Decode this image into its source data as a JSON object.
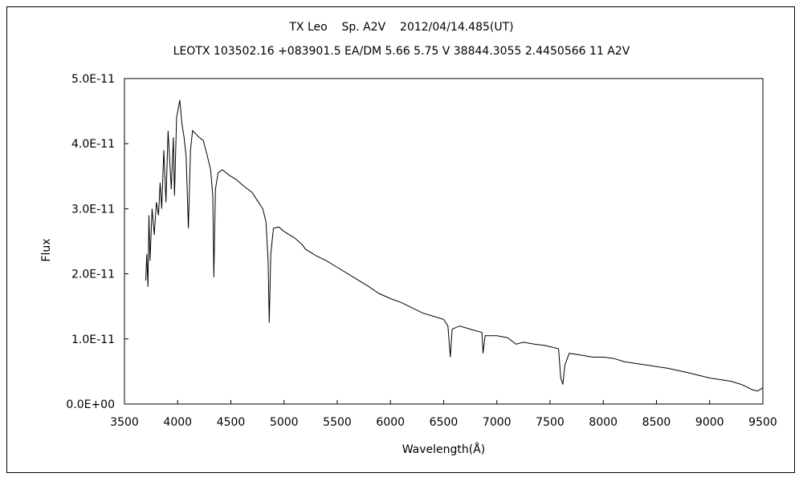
{
  "chart_data": {
    "type": "line",
    "title": "TX Leo    Sp. A2V    2012/04/14.485(UT)",
    "subtitle": "LEOTX 103502.16 +083901.5 EA/DM 5.66 5.75 V 38844.3055 2.4450566 11 A2V",
    "xlabel": "Wavelength(Å)",
    "ylabel": "Flux",
    "xlim": [
      3500,
      9500
    ],
    "ylim": [
      0,
      5e-11
    ],
    "x_ticks": [
      3500,
      4000,
      4500,
      5000,
      5500,
      6000,
      6500,
      7000,
      7500,
      8000,
      8500,
      9000,
      9500
    ],
    "x_tick_labels": [
      "3500",
      "4000",
      "4500",
      "5000",
      "5500",
      "6000",
      "6500",
      "7000",
      "7500",
      "8000",
      "8500",
      "9000",
      "9500"
    ],
    "y_ticks": [
      0,
      1e-11,
      2e-11,
      3e-11,
      4e-11,
      5e-11
    ],
    "y_tick_labels": [
      "0.0E+00",
      "1.0E-11",
      "2.0E-11",
      "3.0E-11",
      "4.0E-11",
      "5.0E-11"
    ],
    "grid": false,
    "legend": "none",
    "series": [
      {
        "color": "#000000",
        "points": [
          [
            3700,
            1.9e-11
          ],
          [
            3710,
            2.3e-11
          ],
          [
            3720,
            1.8e-11
          ],
          [
            3730,
            2.9e-11
          ],
          [
            3740,
            2.2e-11
          ],
          [
            3760,
            3e-11
          ],
          [
            3780,
            2.6e-11
          ],
          [
            3800,
            3.1e-11
          ],
          [
            3820,
            2.9e-11
          ],
          [
            3835,
            3.4e-11
          ],
          [
            3850,
            3e-11
          ],
          [
            3870,
            3.9e-11
          ],
          [
            3890,
            3.1e-11
          ],
          [
            3910,
            4.2e-11
          ],
          [
            3940,
            3.3e-11
          ],
          [
            3960,
            4.1e-11
          ],
          [
            3970,
            3.2e-11
          ],
          [
            3990,
            4.4e-11
          ],
          [
            4020,
            4.67e-11
          ],
          [
            4040,
            4.3e-11
          ],
          [
            4060,
            4.1e-11
          ],
          [
            4080,
            3.8e-11
          ],
          [
            4101,
            2.7e-11
          ],
          [
            4120,
            3.9e-11
          ],
          [
            4140,
            4.2e-11
          ],
          [
            4170,
            4.15e-11
          ],
          [
            4200,
            4.1e-11
          ],
          [
            4240,
            4.05e-11
          ],
          [
            4280,
            3.8e-11
          ],
          [
            4310,
            3.6e-11
          ],
          [
            4330,
            3.2e-11
          ],
          [
            4340,
            1.95e-11
          ],
          [
            4355,
            3.3e-11
          ],
          [
            4380,
            3.55e-11
          ],
          [
            4420,
            3.6e-11
          ],
          [
            4480,
            3.52e-11
          ],
          [
            4550,
            3.45e-11
          ],
          [
            4620,
            3.35e-11
          ],
          [
            4700,
            3.25e-11
          ],
          [
            4760,
            3.1e-11
          ],
          [
            4800,
            3e-11
          ],
          [
            4830,
            2.8e-11
          ],
          [
            4850,
            2.2e-11
          ],
          [
            4861,
            1.25e-11
          ],
          [
            4875,
            2.3e-11
          ],
          [
            4900,
            2.7e-11
          ],
          [
            4950,
            2.72e-11
          ],
          [
            5000,
            2.65e-11
          ],
          [
            5100,
            2.55e-11
          ],
          [
            5170,
            2.45e-11
          ],
          [
            5200,
            2.38e-11
          ],
          [
            5300,
            2.28e-11
          ],
          [
            5400,
            2.2e-11
          ],
          [
            5500,
            2.1e-11
          ],
          [
            5600,
            2e-11
          ],
          [
            5700,
            1.9e-11
          ],
          [
            5800,
            1.8e-11
          ],
          [
            5890,
            1.7e-11
          ],
          [
            6000,
            1.62e-11
          ],
          [
            6100,
            1.56e-11
          ],
          [
            6200,
            1.48e-11
          ],
          [
            6300,
            1.4e-11
          ],
          [
            6400,
            1.35e-11
          ],
          [
            6500,
            1.3e-11
          ],
          [
            6540,
            1.2e-11
          ],
          [
            6563,
            7.2e-12
          ],
          [
            6580,
            1.15e-11
          ],
          [
            6650,
            1.2e-11
          ],
          [
            6750,
            1.15e-11
          ],
          [
            6860,
            1.1e-11
          ],
          [
            6870,
            7.8e-12
          ],
          [
            6890,
            1.05e-11
          ],
          [
            7000,
            1.05e-11
          ],
          [
            7100,
            1.02e-11
          ],
          [
            7180,
            9.2e-12
          ],
          [
            7250,
            9.5e-12
          ],
          [
            7350,
            9.2e-12
          ],
          [
            7450,
            9e-12
          ],
          [
            7580,
            8.5e-12
          ],
          [
            7600,
            4e-12
          ],
          [
            7620,
            3e-12
          ],
          [
            7640,
            6e-12
          ],
          [
            7680,
            7.8e-12
          ],
          [
            7800,
            7.5e-12
          ],
          [
            7900,
            7.2e-12
          ],
          [
            8000,
            7.2e-12
          ],
          [
            8100,
            7e-12
          ],
          [
            8200,
            6.5e-12
          ],
          [
            8400,
            6e-12
          ],
          [
            8600,
            5.5e-12
          ],
          [
            8800,
            4.8e-12
          ],
          [
            9000,
            4e-12
          ],
          [
            9200,
            3.5e-12
          ],
          [
            9300,
            3e-12
          ],
          [
            9400,
            2.2e-12
          ],
          [
            9450,
            2e-12
          ],
          [
            9500,
            2.5e-12
          ]
        ]
      }
    ]
  }
}
